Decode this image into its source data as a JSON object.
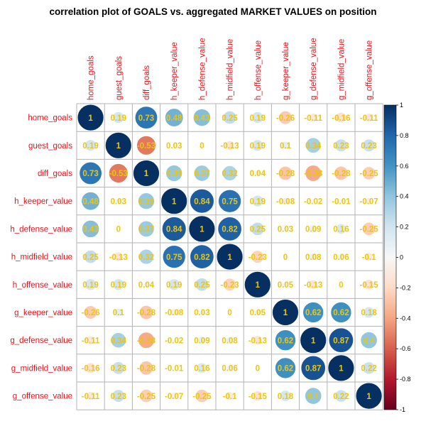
{
  "chart_data": {
    "type": "heatmap",
    "title": "correlation plot of GOALS vs. aggregated MARKET VALUES on position",
    "variables": [
      "home_goals",
      "guest_goals",
      "diff_goals",
      "h_keeper_value",
      "h_defense_value",
      "h_midfield_value",
      "h_offense_value",
      "g_keeper_value",
      "g_defense_value",
      "g_midfield_value",
      "g_offense_value"
    ],
    "matrix": [
      [
        1,
        0.19,
        0.73,
        0.48,
        0.43,
        0.25,
        0.19,
        -0.26,
        -0.11,
        -0.16,
        -0.11
      ],
      [
        0.19,
        1,
        -0.53,
        0.03,
        0,
        -0.13,
        0.19,
        0.1,
        0.34,
        0.23,
        0.23
      ],
      [
        0.73,
        -0.53,
        1,
        0.39,
        0.37,
        0.32,
        0.04,
        -0.28,
        -0.38,
        -0.28,
        -0.25
      ],
      [
        0.48,
        0.03,
        0.39,
        1,
        0.84,
        0.75,
        0.19,
        -0.08,
        -0.02,
        -0.01,
        -0.07
      ],
      [
        0.43,
        0,
        0.37,
        0.84,
        1,
        0.82,
        0.25,
        0.03,
        0.09,
        0.16,
        -0.25
      ],
      [
        0.25,
        -0.13,
        0.32,
        0.75,
        0.82,
        1,
        -0.23,
        0,
        0.08,
        0.06,
        -0.1
      ],
      [
        0.19,
        0.19,
        0.04,
        0.19,
        0.25,
        -0.23,
        1,
        0.05,
        -0.13,
        0,
        -0.15
      ],
      [
        -0.26,
        0.1,
        -0.28,
        -0.08,
        0.03,
        0,
        0.05,
        1,
        0.62,
        0.62,
        0.18
      ],
      [
        -0.11,
        0.34,
        -0.38,
        -0.02,
        0.09,
        0.08,
        -0.13,
        0.62,
        1,
        0.87,
        0.4
      ],
      [
        -0.16,
        0.23,
        -0.28,
        -0.01,
        0.16,
        0.06,
        0,
        0.62,
        0.87,
        1,
        0.22
      ],
      [
        -0.11,
        0.23,
        -0.25,
        -0.07,
        -0.25,
        -0.1,
        -0.15,
        0.18,
        0.4,
        0.22,
        1
      ]
    ],
    "colorbar": {
      "range": [
        -1,
        1
      ],
      "ticks": [
        "1",
        "0.8",
        "0.6",
        "0.4",
        "0.2",
        "0",
        "-0.2",
        "-0.4",
        "-0.6",
        "-0.8",
        "-1"
      ]
    },
    "colors": {
      "negative_end": "#67001f",
      "neutral": "#f7f7f7",
      "positive_end": "#053061",
      "label_text": "#e8121b",
      "value_text": "#ecc50d",
      "grid": "#b3b3b3"
    }
  }
}
